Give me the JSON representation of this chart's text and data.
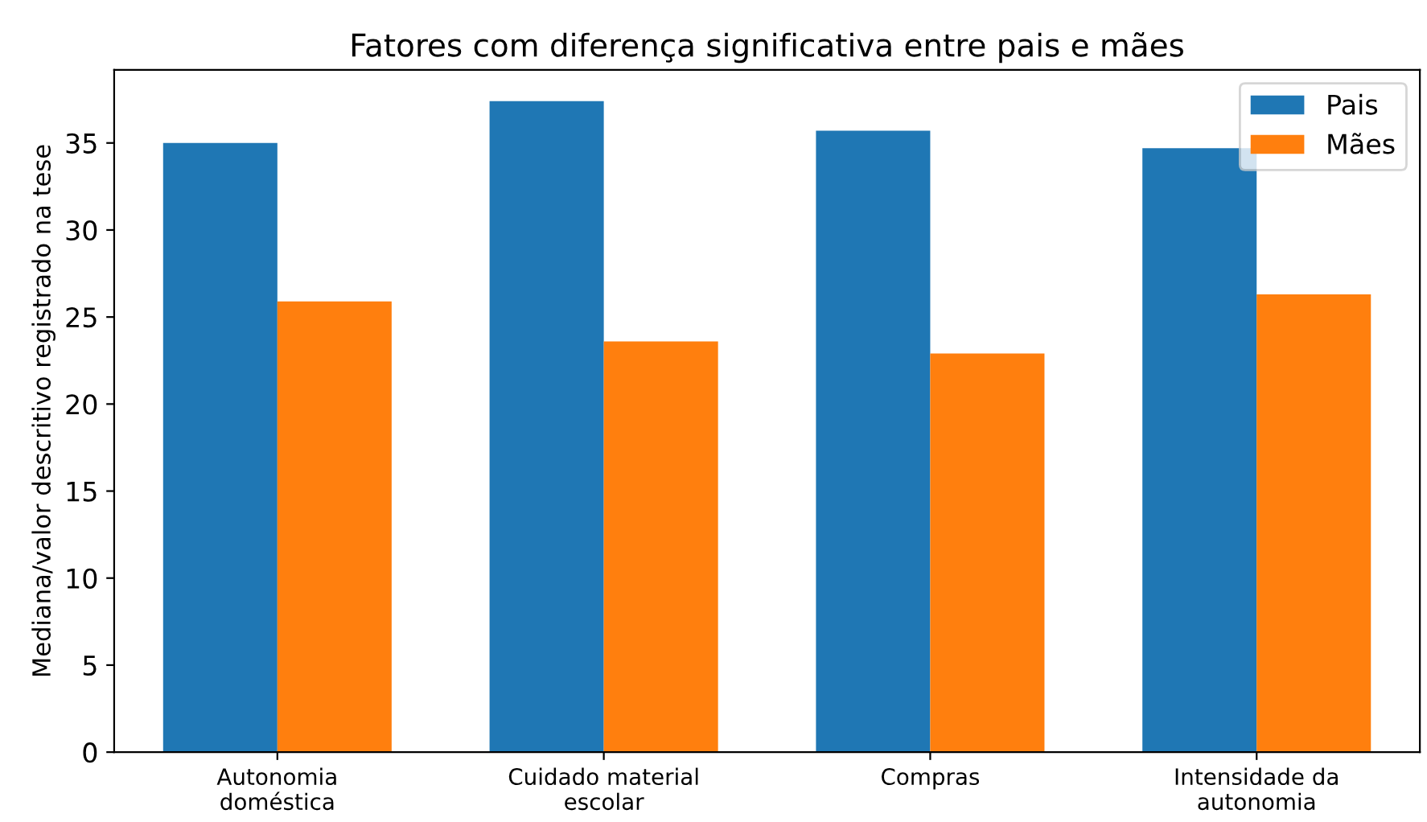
{
  "chart_data": {
    "type": "bar",
    "title": "Fatores com diferença significativa entre pais e mães",
    "ylabel": "Mediana/valor descritivo registrado na tese",
    "categories": [
      "Autonomia\ndoméstica",
      "Cuidado material\nescolar",
      "Compras",
      "Intensidade da\nautonomia"
    ],
    "series": [
      {
        "name": "Pais",
        "color": "#1f77b4",
        "values": [
          35.0,
          37.4,
          35.7,
          34.7
        ]
      },
      {
        "name": "Mães",
        "color": "#ff7f0e",
        "values": [
          25.9,
          23.6,
          22.9,
          26.3
        ]
      }
    ],
    "ylim": [
      0,
      39.2
    ],
    "yticks": [
      0,
      5,
      10,
      15,
      20,
      25,
      30,
      35
    ],
    "legend": "top right",
    "grid": false
  }
}
